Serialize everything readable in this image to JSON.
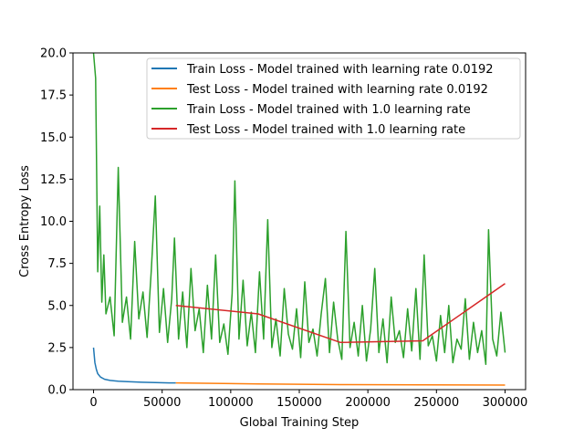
{
  "chart_data": {
    "type": "line",
    "title": "",
    "xlabel": "Global Training Step",
    "ylabel": "Cross Entropy Loss",
    "xlim": [
      -15000,
      315000
    ],
    "ylim": [
      0,
      20
    ],
    "x_ticks": [
      0,
      50000,
      100000,
      150000,
      200000,
      250000,
      300000
    ],
    "x_tick_labels": [
      "0",
      "50000",
      "100000",
      "150000",
      "200000",
      "250000",
      "300000"
    ],
    "y_ticks": [
      0,
      2.5,
      5,
      7.5,
      10,
      12.5,
      15,
      17.5,
      20
    ],
    "y_tick_labels": [
      "0.0",
      "2.5",
      "5.0",
      "7.5",
      "10.0",
      "12.5",
      "15.0",
      "17.5",
      "20.0"
    ],
    "grid": false,
    "legend_position": "upper right",
    "series": [
      {
        "name": "Train Loss - Model trained with learning rate 0.0192",
        "color": "#1f77b4",
        "x": [
          0,
          1000,
          2000,
          3000,
          5000,
          8000,
          12000,
          18000,
          25000,
          35000,
          45000,
          55000,
          60000
        ],
        "y": [
          2.5,
          1.6,
          1.2,
          0.95,
          0.75,
          0.62,
          0.55,
          0.5,
          0.47,
          0.44,
          0.42,
          0.4,
          0.4
        ]
      },
      {
        "name": "Test Loss - Model trained with learning rate 0.0192",
        "color": "#ff7f0e",
        "x": [
          60000,
          120000,
          180000,
          240000,
          300000
        ],
        "y": [
          0.4,
          0.34,
          0.3,
          0.28,
          0.27
        ]
      },
      {
        "name": "Train Loss - Model trained with 1.0 learning rate",
        "color": "#2ca02c",
        "x": [
          0,
          1500,
          3000,
          4500,
          6000,
          7500,
          9000,
          12000,
          15000,
          18000,
          21000,
          24000,
          27000,
          30000,
          33000,
          36000,
          39000,
          42000,
          45000,
          48000,
          51000,
          54000,
          57000,
          59000,
          62000,
          65000,
          68000,
          71000,
          74000,
          77000,
          80000,
          83000,
          86000,
          89000,
          92000,
          95000,
          98000,
          101000,
          103000,
          106000,
          109000,
          112000,
          115000,
          118000,
          121000,
          124000,
          127000,
          130000,
          133000,
          136000,
          139000,
          142000,
          145000,
          148000,
          151000,
          154000,
          157000,
          160000,
          163000,
          166000,
          169000,
          172000,
          175000,
          178000,
          181000,
          184000,
          187000,
          190000,
          193000,
          196000,
          199000,
          202000,
          205000,
          208000,
          211000,
          214000,
          217000,
          220000,
          223000,
          226000,
          229000,
          232000,
          235000,
          238000,
          241000,
          244000,
          247000,
          250000,
          253000,
          256000,
          259000,
          262000,
          265000,
          268000,
          271000,
          274000,
          277000,
          280000,
          283000,
          286000,
          288000,
          291000,
          294000,
          297000,
          300000
        ],
        "y": [
          20.0,
          18.5,
          7.0,
          10.9,
          5.2,
          8.0,
          4.5,
          5.5,
          3.2,
          13.2,
          4.0,
          5.5,
          3.0,
          8.8,
          4.2,
          5.8,
          3.1,
          7.0,
          11.5,
          3.4,
          6.0,
          2.8,
          5.4,
          9.0,
          3.0,
          5.8,
          2.5,
          7.2,
          3.5,
          4.8,
          2.2,
          6.2,
          3.0,
          8.0,
          2.8,
          3.9,
          2.1,
          5.7,
          12.4,
          3.0,
          6.5,
          2.6,
          4.6,
          2.2,
          7.0,
          3.0,
          10.1,
          2.5,
          4.2,
          2.0,
          6.0,
          3.3,
          2.4,
          4.8,
          1.9,
          6.4,
          2.8,
          3.6,
          2.0,
          4.5,
          6.6,
          2.2,
          5.2,
          3.0,
          1.8,
          9.4,
          2.5,
          4.0,
          2.0,
          5.0,
          1.7,
          3.6,
          7.2,
          2.2,
          4.2,
          1.6,
          5.5,
          2.8,
          3.5,
          1.9,
          4.8,
          2.3,
          6.0,
          1.8,
          8.0,
          2.6,
          3.2,
          1.7,
          4.4,
          2.2,
          5.0,
          1.6,
          3.0,
          2.4,
          5.4,
          1.8,
          4.0,
          2.2,
          3.5,
          1.5,
          9.5,
          3.0,
          2.0,
          4.6,
          2.2
        ]
      },
      {
        "name": "Test Loss - Model trained with 1.0 learning rate",
        "color": "#d62728",
        "x": [
          60000,
          120000,
          180000,
          240000,
          300000
        ],
        "y": [
          5.0,
          4.5,
          2.8,
          2.9,
          6.3
        ]
      }
    ]
  }
}
